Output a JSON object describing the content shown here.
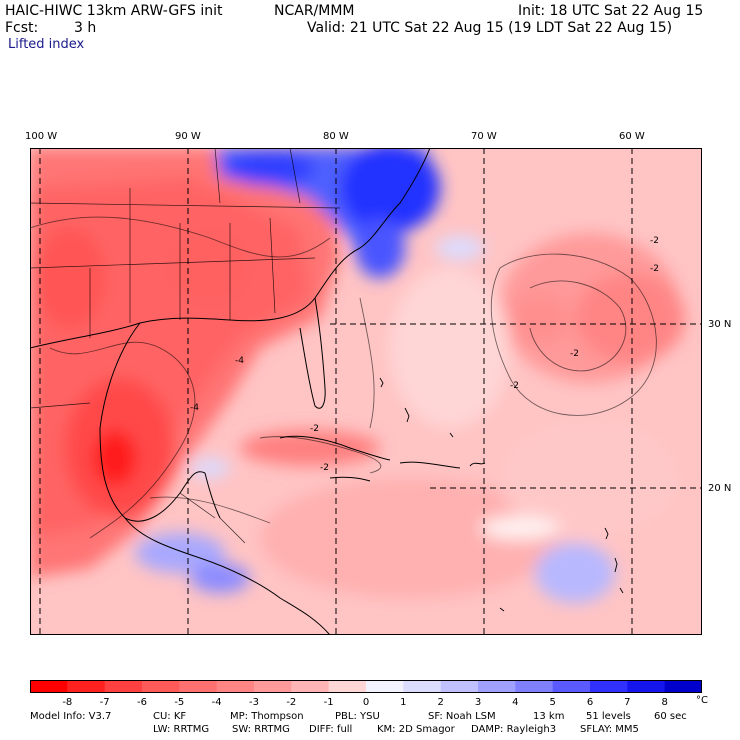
{
  "header": {
    "model": "HAIC-HIWC 13km ARW-GFS init",
    "org": "NCAR/MMM",
    "init": "Init: 18 UTC Sat 22 Aug 15",
    "fcst_label": "Fcst:",
    "fcst_value": "3 h",
    "valid": "Valid: 21 UTC Sat 22 Aug 15 (19 LDT Sat 22 Aug 15)",
    "field": "Lifted index"
  },
  "map": {
    "lon_labels": [
      "100 W",
      "90 W",
      "80 W",
      "70 W",
      "60 W"
    ],
    "lat_labels": [
      "30 N",
      "20 N"
    ],
    "contour_labels": [
      "-2",
      "-2",
      "-2",
      "-2",
      "-4",
      "-4",
      "-2",
      "-2"
    ]
  },
  "colorbar": {
    "ticks": [
      "-8",
      "-7",
      "-6",
      "-5",
      "-4",
      "-3",
      "-2",
      "-1",
      "0",
      "1",
      "2",
      "3",
      "4",
      "5",
      "6",
      "7",
      "8"
    ],
    "unit": "°C",
    "colors": [
      "#ff0000",
      "#ff2020",
      "#ff4040",
      "#ff5a5a",
      "#ff7070",
      "#ff8585",
      "#ff9a9a",
      "#ffb5b5",
      "#ffd6d6",
      "#f3f3ff",
      "#dcdcff",
      "#c0c0ff",
      "#a0a0ff",
      "#8080ff",
      "#5a5aff",
      "#3030ff",
      "#1515ee",
      "#0000cc"
    ]
  },
  "footer": {
    "line1": [
      "Model Info: V3.7",
      "CU: KF",
      "MP: Thompson",
      "PBL: YSU",
      "SF: Noah LSM",
      "13 km",
      "51 levels",
      "60 sec"
    ],
    "line2": [
      "LW: RRTMG",
      "SW: RRTMG",
      "DIFF: full",
      "KM: 2D Smagor",
      "DAMP: Rayleigh3",
      "SFLAY: MM5"
    ]
  }
}
